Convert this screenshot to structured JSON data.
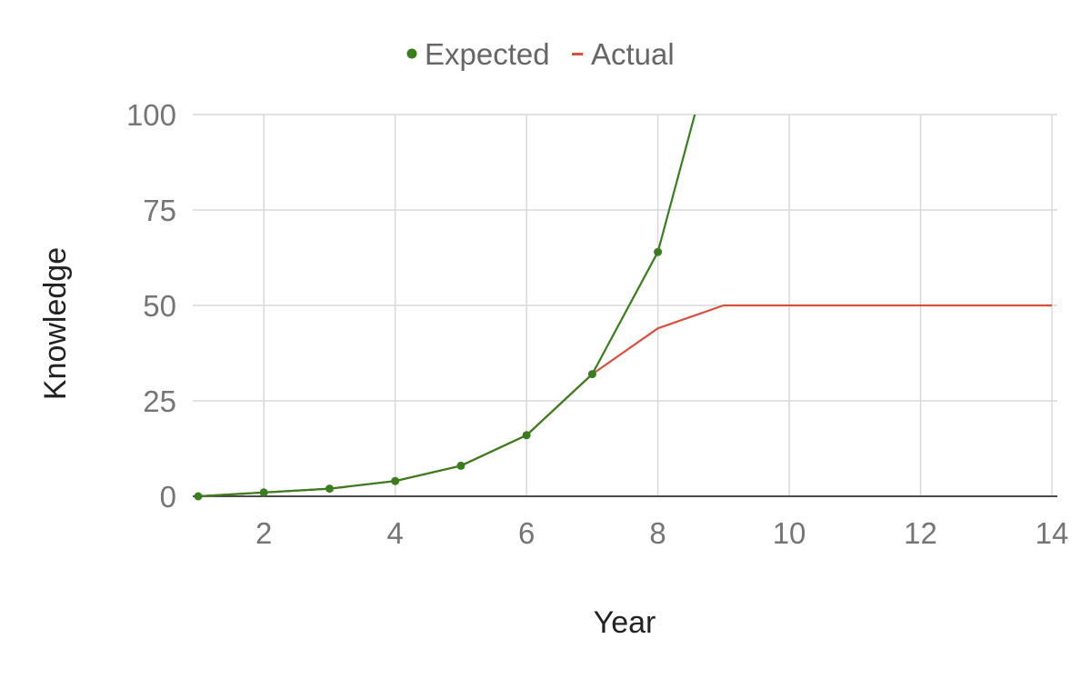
{
  "chart_data": {
    "type": "line",
    "xlabel": "Year",
    "ylabel": "Knowledge",
    "xlim": [
      1,
      14
    ],
    "ylim": [
      0,
      100
    ],
    "x_ticks": [
      2,
      4,
      6,
      8,
      10,
      12,
      14
    ],
    "y_ticks": [
      0,
      25,
      50,
      75,
      100
    ],
    "grid": true,
    "legend_position": "top-center",
    "series": [
      {
        "name": "Expected",
        "color": "#3a7d1e",
        "markers": true,
        "x": [
          1,
          2,
          3,
          4,
          5,
          6,
          7,
          8,
          9
        ],
        "y": [
          0,
          1,
          2,
          4,
          8,
          16,
          32,
          64,
          128
        ]
      },
      {
        "name": "Actual",
        "color": "#d9503f",
        "markers": false,
        "x": [
          1,
          2,
          3,
          4,
          5,
          6,
          7,
          8,
          9,
          10,
          11,
          12,
          13,
          14
        ],
        "y": [
          0,
          1,
          2,
          4,
          8,
          16,
          32,
          44,
          50,
          50,
          50,
          50,
          50,
          50
        ]
      }
    ]
  }
}
